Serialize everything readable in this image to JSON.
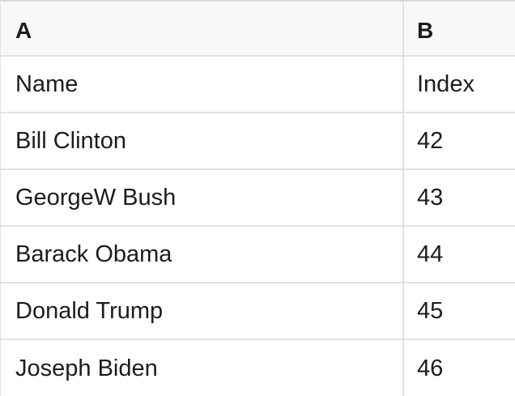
{
  "grid": {
    "column_headers": [
      "A",
      "B"
    ],
    "rows": [
      [
        "Name",
        "Index"
      ],
      [
        "Bill Clinton",
        "42"
      ],
      [
        "GeorgeW Bush",
        "43"
      ],
      [
        "Barack Obama",
        "44"
      ],
      [
        "Donald Trump",
        "45"
      ],
      [
        "Joseph Biden",
        "46"
      ]
    ]
  },
  "colors": {
    "header_bg": "#f8f8f8",
    "border": "#e2e2e2",
    "top_border": "#d9d9d9",
    "text": "#1c1c1c",
    "cell_bg": "#ffffff"
  }
}
